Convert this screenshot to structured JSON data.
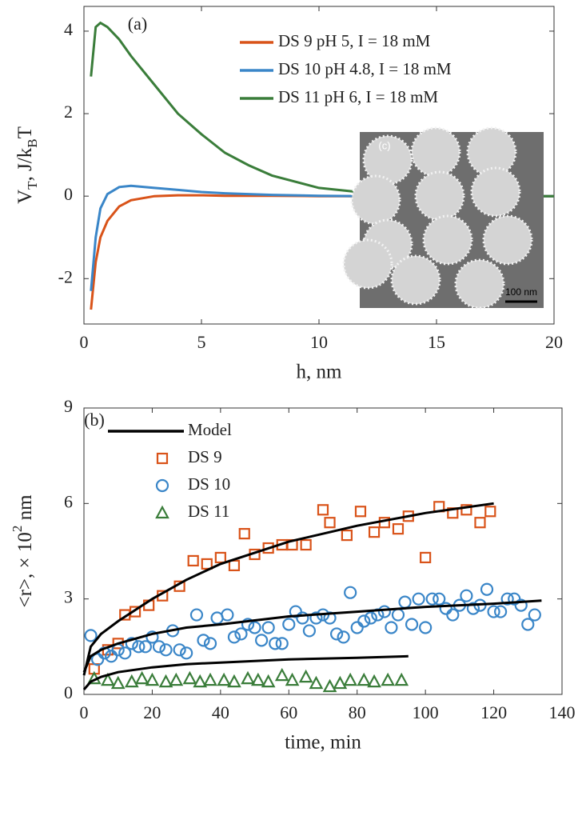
{
  "chart_data": [
    {
      "type": "line",
      "label": "(a)",
      "xlabel": "h, nm",
      "ylabel": [
        "V",
        "T",
        ", J/k",
        "B",
        "T"
      ],
      "xlim": [
        0,
        20
      ],
      "ylim": [
        -3.1,
        4.6
      ],
      "xticks": [
        0,
        5,
        10,
        15,
        20
      ],
      "yticks": [
        -2,
        0,
        2,
        4
      ],
      "legend": "upper right",
      "x": [
        0.3,
        0.5,
        0.7,
        1,
        1.5,
        2,
        3,
        4,
        5,
        6,
        7,
        8,
        10,
        12,
        14,
        16,
        18,
        20
      ],
      "series": [
        {
          "name": "DS 9 pH 5,  I = 18 mM",
          "color": "#d95319",
          "values": [
            -2.75,
            -1.6,
            -1.0,
            -0.6,
            -0.25,
            -0.1,
            0,
            0.02,
            0.02,
            0.01,
            0.01,
            0.01,
            0,
            0,
            0,
            0,
            0,
            0
          ]
        },
        {
          "name": "DS 10 pH 4.8,  I = 18 mM",
          "color": "#3a86c8",
          "values": [
            -2.3,
            -1.0,
            -0.3,
            0.05,
            0.22,
            0.25,
            0.2,
            0.15,
            0.1,
            0.07,
            0.05,
            0.03,
            0.01,
            0,
            0,
            0,
            0,
            0
          ]
        },
        {
          "name": "DS 11 pH 6,  I = 18 mM",
          "color": "#3a7d3a",
          "values": [
            2.9,
            4.1,
            4.2,
            4.1,
            3.8,
            3.4,
            2.7,
            2.0,
            1.5,
            1.05,
            0.75,
            0.5,
            0.2,
            0.08,
            0.03,
            0.01,
            0,
            0
          ]
        }
      ],
      "inset": {
        "label": "(c)",
        "scale_bar": "100 nm"
      }
    },
    {
      "type": "scatter",
      "label": "(b)",
      "xlabel": "time, min",
      "ylabel": [
        "<r>, × 10",
        "2",
        " nm"
      ],
      "xlim": [
        0,
        140
      ],
      "ylim": [
        0,
        9
      ],
      "xticks": [
        0,
        20,
        40,
        60,
        80,
        100,
        120,
        140
      ],
      "yticks": [
        0,
        3,
        6,
        9
      ],
      "legend": "upper left",
      "model": {
        "name": "Model",
        "color": "#000000",
        "curves": [
          {
            "x": [
              0,
              2,
              5,
              10,
              20,
              30,
              40,
              60,
              80,
              100,
              120
            ],
            "values": [
              0.6,
              1.5,
              1.9,
              2.3,
              3.0,
              3.6,
              4.1,
              4.8,
              5.3,
              5.7,
              6.0
            ]
          },
          {
            "x": [
              0,
              2,
              5,
              10,
              20,
              30,
              40,
              60,
              80,
              100,
              120,
              134
            ],
            "values": [
              0.7,
              1.2,
              1.4,
              1.6,
              1.9,
              2.1,
              2.2,
              2.45,
              2.6,
              2.75,
              2.85,
              2.95
            ]
          },
          {
            "x": [
              0,
              2,
              5,
              10,
              20,
              30,
              40,
              60,
              80,
              95
            ],
            "values": [
              0.15,
              0.4,
              0.55,
              0.7,
              0.85,
              0.95,
              1.0,
              1.1,
              1.15,
              1.2
            ]
          }
        ]
      },
      "series": [
        {
          "name": "DS 9",
          "color": "#d95319",
          "marker": "square",
          "x": [
            3,
            7,
            10,
            12,
            15,
            19,
            23,
            28,
            32,
            36,
            40,
            44,
            47,
            50,
            54,
            58,
            61,
            65,
            70,
            72,
            77,
            81,
            85,
            88,
            92,
            95,
            100,
            104,
            108,
            112,
            116,
            119
          ],
          "values": [
            0.8,
            1.4,
            1.6,
            2.5,
            2.6,
            2.8,
            3.1,
            3.4,
            4.2,
            4.1,
            4.3,
            4.05,
            5.05,
            4.4,
            4.6,
            4.7,
            4.7,
            4.7,
            5.8,
            5.4,
            5.0,
            5.75,
            5.1,
            5.4,
            5.2,
            5.6,
            4.3,
            5.9,
            5.7,
            5.8,
            5.4,
            5.75
          ]
        },
        {
          "name": "DS 10",
          "color": "#3a86c8",
          "marker": "circle",
          "x": [
            2,
            4,
            6,
            8,
            10,
            12,
            14,
            16,
            18,
            20,
            22,
            24,
            26,
            28,
            30,
            33,
            35,
            37,
            39,
            42,
            44,
            46,
            48,
            50,
            52,
            54,
            56,
            58,
            60,
            62,
            64,
            66,
            68,
            70,
            72,
            74,
            76,
            78,
            80,
            82,
            84,
            86,
            88,
            90,
            92,
            94,
            96,
            98,
            100,
            102,
            104,
            106,
            108,
            110,
            112,
            114,
            116,
            118,
            120,
            122,
            124,
            126,
            128,
            130,
            132
          ],
          "values": [
            1.85,
            1.1,
            1.3,
            1.2,
            1.4,
            1.3,
            1.6,
            1.5,
            1.5,
            1.8,
            1.5,
            1.4,
            2.0,
            1.4,
            1.3,
            2.5,
            1.7,
            1.6,
            2.4,
            2.5,
            1.8,
            1.9,
            2.2,
            2.1,
            1.7,
            2.1,
            1.6,
            1.6,
            2.2,
            2.6,
            2.4,
            2.0,
            2.4,
            2.5,
            2.4,
            1.9,
            1.8,
            3.2,
            2.1,
            2.3,
            2.4,
            2.5,
            2.6,
            2.1,
            2.5,
            2.9,
            2.2,
            3.0,
            2.1,
            3.0,
            3.0,
            2.7,
            2.5,
            2.8,
            3.1,
            2.7,
            2.8,
            3.3,
            2.6,
            2.6,
            3.0,
            3.0,
            2.8,
            2.2,
            2.5
          ]
        },
        {
          "name": "DS 11",
          "color": "#3a7d3a",
          "marker": "triangle",
          "x": [
            3,
            7,
            10,
            14,
            17,
            20,
            24,
            27,
            31,
            34,
            37,
            41,
            44,
            48,
            51,
            54,
            58,
            61,
            65,
            68,
            72,
            75,
            78,
            82,
            85,
            89,
            93
          ],
          "values": [
            0.5,
            0.45,
            0.35,
            0.4,
            0.5,
            0.45,
            0.4,
            0.45,
            0.5,
            0.4,
            0.45,
            0.45,
            0.4,
            0.5,
            0.45,
            0.4,
            0.6,
            0.45,
            0.55,
            0.35,
            0.25,
            0.35,
            0.45,
            0.45,
            0.4,
            0.45,
            0.45
          ]
        }
      ]
    }
  ]
}
